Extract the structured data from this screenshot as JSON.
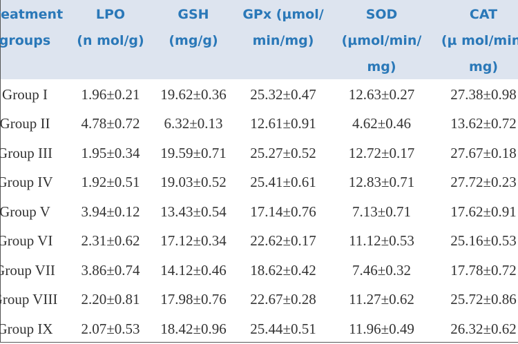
{
  "table": {
    "header": [
      "Treatment\ngroups",
      "LPO\n(n mol/g)",
      "GSH\n(mg/g)",
      "GPx (µmol/\nmin/mg)",
      "SOD\n(µmol/min/\nmg)",
      "CAT\n(µ mol/min/\nmg)"
    ],
    "rows": [
      [
        "Group I",
        "1.96±0.21",
        "19.62±0.36",
        "25.32±0.47",
        "12.63±0.27",
        "27.38±0.98"
      ],
      [
        "Group II",
        "4.78±0.72",
        "6.32±0.13",
        "12.61±0.91",
        "4.62±0.46",
        "13.62±0.72"
      ],
      [
        "Group III",
        "1.95±0.34",
        "19.59±0.71",
        "25.27±0.52",
        "12.72±0.17",
        "27.67±0.18"
      ],
      [
        "Group IV",
        "1.92±0.51",
        "19.03±0.52",
        "25.41±0.61",
        "12.83±0.71",
        "27.72±0.23"
      ],
      [
        "Group V",
        "3.94±0.12",
        "13.43±0.54",
        "17.14±0.76",
        "7.13±0.71",
        "17.62±0.91"
      ],
      [
        "Group VI",
        "2.31±0.62",
        "17.12±0.34",
        "22.62±0.17",
        "11.12±0.53",
        "25.16±0.53"
      ],
      [
        "Group VII",
        "3.86±0.74",
        "14.12±0.46",
        "18.62±0.42",
        "7.46±0.32",
        "17.78±0.72"
      ],
      [
        "Group VIII",
        "2.20±0.81",
        "17.98±0.76",
        "22.67±0.28",
        "11.27±0.62",
        "25.72±0.86"
      ],
      [
        "Group IX",
        "2.07±0.53",
        "18.42±0.96",
        "25.44±0.51",
        "11.96±0.49",
        "26.32±0.62"
      ]
    ]
  }
}
